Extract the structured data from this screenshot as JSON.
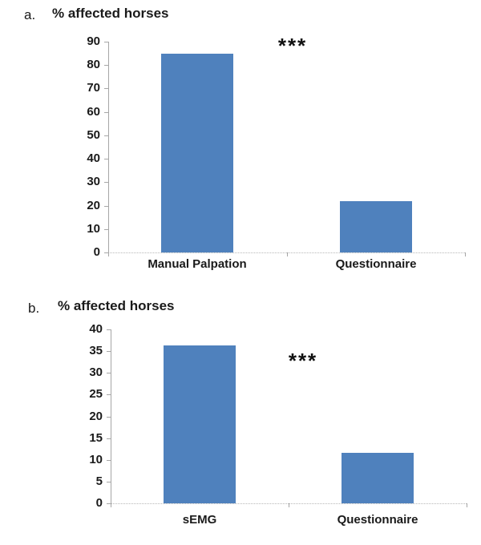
{
  "colors": {
    "bar": "#4F81BD",
    "axis": "#a6a6a6",
    "baseline_dotted": "#b8b8b8",
    "text": "#1a1a1a"
  },
  "chart_data": [
    {
      "type": "bar",
      "panel_label": "a.",
      "title": "% affected horses",
      "categories": [
        "Manual Palpation",
        "Questionnaire"
      ],
      "values": [
        85,
        22
      ],
      "xlabel": "",
      "ylabel": "% affected horses",
      "ylim": [
        0,
        90
      ],
      "ytick_step": 10,
      "yticks": [
        0,
        10,
        20,
        30,
        40,
        50,
        60,
        70,
        80,
        90
      ],
      "annotation": "***",
      "bar_color": "#4F81BD",
      "grid": "off",
      "legend": "none"
    },
    {
      "type": "bar",
      "panel_label": "b.",
      "title": "% affected horses",
      "categories": [
        "sEMG",
        "Questionnaire"
      ],
      "values": [
        36.3,
        11.6
      ],
      "xlabel": "",
      "ylabel": "% affected horses",
      "ylim": [
        0,
        40
      ],
      "ytick_step": 5,
      "yticks": [
        0,
        5,
        10,
        15,
        20,
        25,
        30,
        35,
        40
      ],
      "annotation": "***",
      "bar_color": "#4F81BD",
      "grid": "off",
      "legend": "none"
    }
  ]
}
